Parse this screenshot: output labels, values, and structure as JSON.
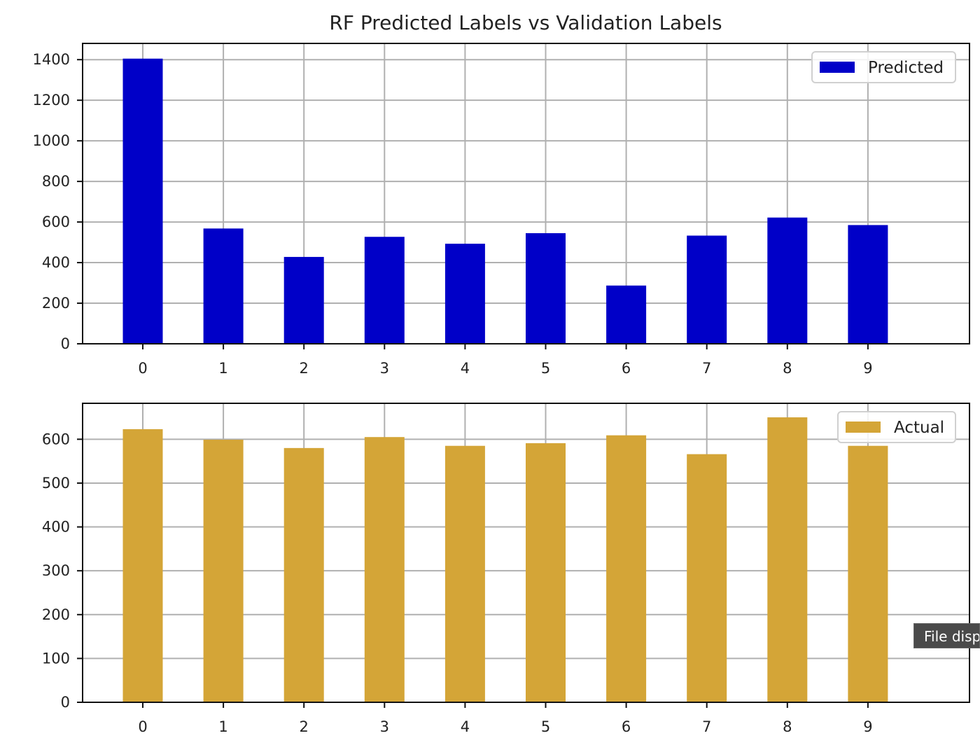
{
  "title": "RF Predicted Labels vs Validation Labels",
  "tooltip": {
    "text": "File disp"
  },
  "chart_data": [
    {
      "type": "bar",
      "categories": [
        "0",
        "1",
        "2",
        "3",
        "4",
        "5",
        "6",
        "7",
        "8",
        "9"
      ],
      "series": [
        {
          "name": "Predicted",
          "values": [
            1405,
            568,
            428,
            527,
            493,
            545,
            287,
            533,
            622,
            585
          ]
        }
      ],
      "ylim": [
        0,
        1480
      ],
      "yticks": [
        0,
        200,
        400,
        600,
        800,
        1000,
        1200,
        1400
      ],
      "grid": true,
      "legend": "top-right",
      "color": "#0000c8"
    },
    {
      "type": "bar",
      "categories": [
        "0",
        "1",
        "2",
        "3",
        "4",
        "5",
        "6",
        "7",
        "8",
        "9"
      ],
      "series": [
        {
          "name": "Actual",
          "values": [
            623,
            599,
            580,
            605,
            585,
            591,
            609,
            566,
            650,
            585
          ]
        }
      ],
      "ylim": [
        0,
        682
      ],
      "yticks": [
        0,
        100,
        200,
        300,
        400,
        500,
        600
      ],
      "grid": true,
      "legend": "top-right",
      "color": "#d4a537"
    }
  ]
}
